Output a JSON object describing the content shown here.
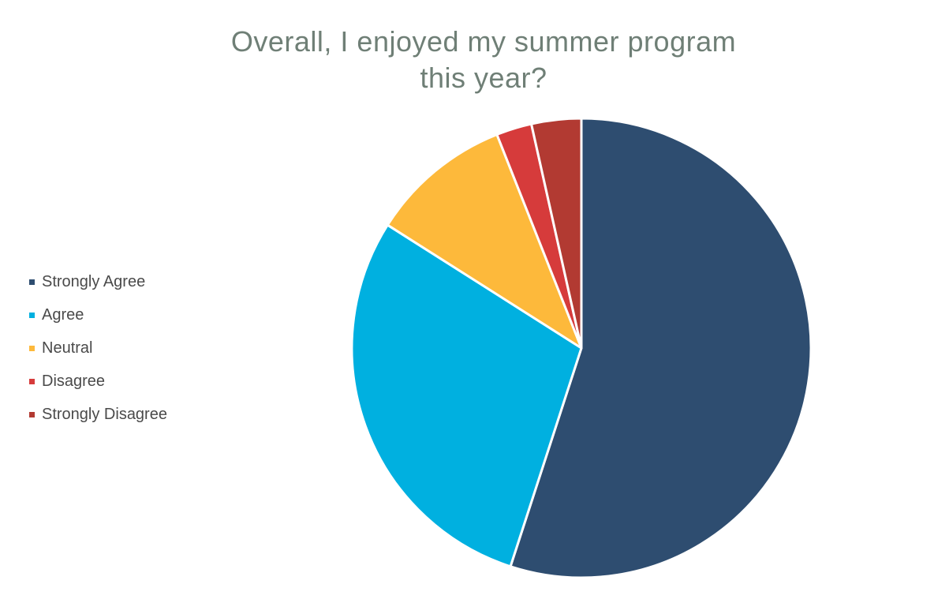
{
  "chart_data": {
    "type": "pie",
    "title_lines": [
      "Overall, I enjoyed my summer program",
      "this year?"
    ],
    "legend_position": "left",
    "slices": [
      {
        "label": "Strongly Agree",
        "value": 55,
        "color": "#2e4d70"
      },
      {
        "label": "Agree",
        "value": 29,
        "color": "#00b0e0"
      },
      {
        "label": "Neutral",
        "value": 10,
        "color": "#fdb93b"
      },
      {
        "label": "Disagree",
        "value": 2.5,
        "color": "#d63b3b"
      },
      {
        "label": "Strongly Disagree",
        "value": 3.5,
        "color": "#b23a32"
      }
    ]
  }
}
